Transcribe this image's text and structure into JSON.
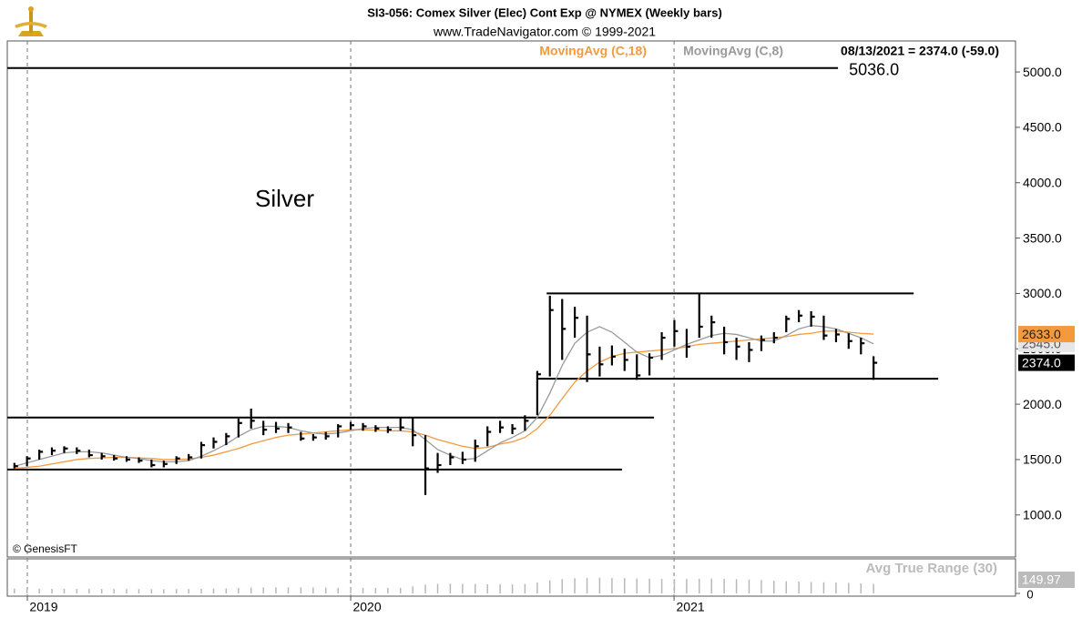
{
  "chart_data": {
    "type": "ohlc",
    "title": "SI3-056:  Comex Silver (Elec) Cont Exp @ NYMEX  (Weekly bars)",
    "subtitle": "www.TradeNavigator.com © 1999-2021",
    "readout": "08/13/2021 = 2374.0 (-59.0)",
    "annotation": "Silver",
    "credit": "© GenesisFT",
    "color": "#000000",
    "x": [
      2018.96,
      2018.999,
      2019.037,
      2019.076,
      2019.114,
      2019.153,
      2019.191,
      2019.23,
      2019.268,
      2019.307,
      2019.345,
      2019.384,
      2019.422,
      2019.461,
      2019.499,
      2019.538,
      2019.576,
      2019.615,
      2019.653,
      2019.692,
      2019.73,
      2019.769,
      2019.807,
      2019.846,
      2019.884,
      2019.923,
      2019.961,
      2020.0,
      2020.038,
      2020.077,
      2020.115,
      2020.154,
      2020.192,
      2020.231,
      2020.269,
      2020.308,
      2020.346,
      2020.385,
      2020.423,
      2020.462,
      2020.5,
      2020.539,
      2020.577,
      2020.616,
      2020.654,
      2020.693,
      2020.731,
      2020.77,
      2020.808,
      2020.847,
      2020.885,
      2020.924,
      2020.962,
      2021.001,
      2021.039,
      2021.078,
      2021.116,
      2021.155,
      2021.193,
      2021.232,
      2021.27,
      2021.309,
      2021.347,
      2021.386,
      2021.424,
      2021.463,
      2021.501,
      2021.54,
      2021.578,
      2021.617
    ],
    "high": [
      1470,
      1530,
      1590,
      1610,
      1620,
      1610,
      1590,
      1560,
      1540,
      1530,
      1520,
      1500,
      1490,
      1530,
      1550,
      1660,
      1700,
      1740,
      1870,
      1960,
      1850,
      1840,
      1830,
      1750,
      1730,
      1750,
      1820,
      1840,
      1830,
      1810,
      1800,
      1880,
      1880,
      1720,
      1560,
      1560,
      1570,
      1680,
      1800,
      1850,
      1820,
      1900,
      2300,
      2980,
      2950,
      2880,
      2800,
      2520,
      2530,
      2500,
      2450,
      2460,
      2650,
      2760,
      2680,
      3000,
      2800,
      2700,
      2600,
      2560,
      2620,
      2650,
      2800,
      2850,
      2840,
      2800,
      2680,
      2640,
      2600,
      2433
    ],
    "low": [
      1420,
      1440,
      1500,
      1540,
      1560,
      1550,
      1520,
      1500,
      1490,
      1480,
      1470,
      1430,
      1430,
      1460,
      1490,
      1510,
      1600,
      1630,
      1700,
      1780,
      1720,
      1740,
      1740,
      1670,
      1670,
      1680,
      1700,
      1770,
      1760,
      1750,
      1740,
      1760,
      1620,
      1180,
      1380,
      1450,
      1460,
      1480,
      1620,
      1740,
      1730,
      1760,
      1900,
      2250,
      2400,
      2600,
      2200,
      2250,
      2350,
      2300,
      2220,
      2260,
      2400,
      2520,
      2420,
      2600,
      2600,
      2450,
      2400,
      2380,
      2480,
      2550,
      2650,
      2740,
      2700,
      2580,
      2560,
      2500,
      2450,
      2220
    ],
    "close": [
      1440,
      1510,
      1570,
      1580,
      1600,
      1580,
      1540,
      1530,
      1510,
      1500,
      1490,
      1450,
      1460,
      1510,
      1520,
      1630,
      1660,
      1710,
      1830,
      1850,
      1770,
      1780,
      1790,
      1690,
      1700,
      1710,
      1800,
      1810,
      1800,
      1780,
      1770,
      1790,
      1720,
      1420,
      1450,
      1520,
      1500,
      1620,
      1750,
      1790,
      1780,
      1850,
      2270,
      2850,
      2680,
      2780,
      2450,
      2360,
      2430,
      2400,
      2260,
      2420,
      2600,
      2660,
      2520,
      2700,
      2740,
      2560,
      2520,
      2490,
      2580,
      2600,
      2770,
      2800,
      2790,
      2620,
      2630,
      2570,
      2550,
      2374
    ],
    "close_label": "2374.0",
    "series": [
      {
        "name": "MovingAvg (C,18)",
        "color": "#f39a3c",
        "last_label": "2633.0",
        "values": [
          1420,
          1430,
          1440,
          1460,
          1480,
          1500,
          1510,
          1515,
          1520,
          1520,
          1515,
          1510,
          1500,
          1500,
          1505,
          1520,
          1540,
          1570,
          1600,
          1640,
          1670,
          1700,
          1720,
          1730,
          1740,
          1750,
          1760,
          1770,
          1770,
          1765,
          1760,
          1760,
          1750,
          1720,
          1680,
          1650,
          1620,
          1600,
          1610,
          1640,
          1660,
          1700,
          1780,
          1900,
          2050,
          2200,
          2300,
          2380,
          2430,
          2460,
          2470,
          2480,
          2490,
          2500,
          2520,
          2540,
          2550,
          2560,
          2570,
          2580,
          2590,
          2600,
          2610,
          2630,
          2640,
          2660,
          2660,
          2650,
          2640,
          2633
        ]
      },
      {
        "name": "MovingAvg (C,8)",
        "color": "#9a9a9a",
        "last_label": "2545.0",
        "values": [
          1440,
          1470,
          1500,
          1530,
          1560,
          1570,
          1570,
          1560,
          1540,
          1520,
          1510,
          1490,
          1480,
          1480,
          1490,
          1530,
          1580,
          1640,
          1710,
          1770,
          1800,
          1800,
          1790,
          1760,
          1740,
          1730,
          1740,
          1760,
          1780,
          1790,
          1790,
          1790,
          1770,
          1680,
          1590,
          1540,
          1500,
          1510,
          1580,
          1650,
          1700,
          1760,
          1880,
          2100,
          2350,
          2550,
          2650,
          2700,
          2650,
          2560,
          2470,
          2420,
          2440,
          2490,
          2540,
          2580,
          2620,
          2640,
          2630,
          2600,
          2570,
          2570,
          2620,
          2680,
          2710,
          2700,
          2680,
          2640,
          2600,
          2545
        ]
      }
    ],
    "levels": [
      {
        "value": 5036,
        "label": "5036.0",
        "from": 2018.938,
        "to": 2021.507
      },
      {
        "value": 3000,
        "from": 2020.606,
        "to": 2021.741
      },
      {
        "value": 2230,
        "from": 2020.577,
        "to": 2021.817
      },
      {
        "value": 1880,
        "from": 2018.938,
        "to": 2020.938
      },
      {
        "value": 1410,
        "from": 2018.938,
        "to": 2020.839
      }
    ],
    "xlim": [
      2018.938,
      2022.056
    ],
    "xticks": [
      2019,
      2020,
      2021
    ],
    "ylim": [
      620,
      5280
    ],
    "yticks": [
      {
        "value": 1000,
        "label": "1000.0"
      },
      {
        "value": 1500,
        "label": "1500.0"
      },
      {
        "value": 2000,
        "label": "2000.0"
      },
      {
        "value": 2500,
        "label": "2500.0"
      },
      {
        "value": 3000,
        "label": "3000.0"
      },
      {
        "value": 3500,
        "label": "3500.0"
      },
      {
        "value": 4000,
        "label": "4000.0"
      },
      {
        "value": 4500,
        "label": "4500.0"
      },
      {
        "value": 5000,
        "label": "5000.0"
      }
    ],
    "grid": "x",
    "indicator": {
      "type": "bar",
      "name": "Avg True Range (30)",
      "color": "#b8b8b8",
      "ylim": [
        0,
        500
      ],
      "yticks": [
        0
      ],
      "values": [
        75,
        74,
        73,
        72,
        72,
        71,
        70,
        70,
        69,
        68,
        68,
        67,
        67,
        68,
        69,
        72,
        76,
        80,
        86,
        92,
        95,
        96,
        96,
        95,
        93,
        92,
        90,
        88,
        87,
        86,
        86,
        88,
        110,
        140,
        150,
        152,
        150,
        148,
        145,
        143,
        142,
        148,
        170,
        205,
        225,
        238,
        245,
        246,
        244,
        240,
        236,
        232,
        228,
        226,
        225,
        232,
        232,
        230,
        224,
        218,
        210,
        200,
        192,
        186,
        180,
        175,
        170,
        165,
        158,
        149.97
      ]
    }
  }
}
